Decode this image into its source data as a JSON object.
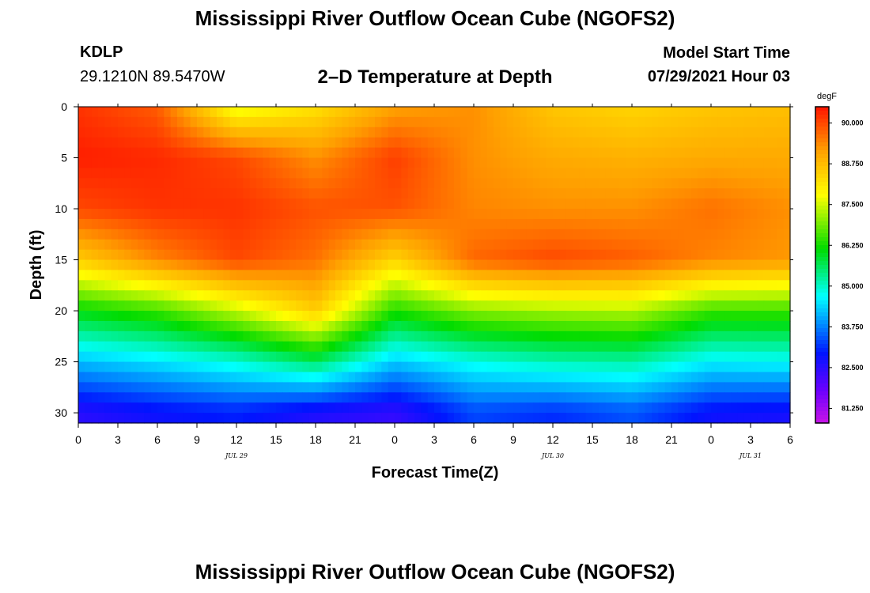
{
  "header": {
    "title": "Mississippi River Outflow Ocean Cube (NGOFS2)",
    "station_id": "KDLP",
    "station_coords": "29.1210N  89.5470W",
    "subtitle": "2–D Temperature at Depth",
    "model_start_label": "Model Start Time",
    "model_start_value": "07/29/2021 Hour 03"
  },
  "footer": {
    "title": "Mississippi River Outflow Ocean Cube (NGOFS2)"
  },
  "chart_data": {
    "type": "heatmap",
    "title": "2–D Temperature at Depth",
    "xlabel": "Forecast Time(Z)",
    "ylabel": "Depth (ft)",
    "xlim": [
      0,
      54
    ],
    "ylim": [
      31,
      0
    ],
    "x_ticks": [
      {
        "value": 0,
        "label": "0"
      },
      {
        "value": 3,
        "label": "3"
      },
      {
        "value": 6,
        "label": "6"
      },
      {
        "value": 9,
        "label": "9"
      },
      {
        "value": 12,
        "label": "12"
      },
      {
        "value": 15,
        "label": "15"
      },
      {
        "value": 18,
        "label": "18"
      },
      {
        "value": 21,
        "label": "21"
      },
      {
        "value": 24,
        "label": "0"
      },
      {
        "value": 27,
        "label": "3"
      },
      {
        "value": 30,
        "label": "6"
      },
      {
        "value": 33,
        "label": "9"
      },
      {
        "value": 36,
        "label": "12"
      },
      {
        "value": 39,
        "label": "15"
      },
      {
        "value": 42,
        "label": "18"
      },
      {
        "value": 45,
        "label": "21"
      },
      {
        "value": 48,
        "label": "0"
      },
      {
        "value": 51,
        "label": "3"
      },
      {
        "value": 54,
        "label": "6"
      }
    ],
    "date_labels": [
      {
        "value": 12,
        "label": "JUL 29"
      },
      {
        "value": 36,
        "label": "JUL 30"
      },
      {
        "value": 51,
        "label": "JUL 31"
      }
    ],
    "y_ticks": [
      0,
      5,
      10,
      15,
      20,
      25,
      30
    ],
    "colorbar": {
      "units": "degF",
      "min": 80.8,
      "max": 90.5,
      "ticks": [
        {
          "value": 90.0,
          "label": "90.000"
        },
        {
          "value": 88.75,
          "label": "88.750"
        },
        {
          "value": 87.5,
          "label": "87.500"
        },
        {
          "value": 86.25,
          "label": "86.250"
        },
        {
          "value": 85.0,
          "label": "85.000"
        },
        {
          "value": 83.75,
          "label": "83.750"
        },
        {
          "value": 82.5,
          "label": "82.500"
        },
        {
          "value": 81.25,
          "label": "81.250"
        }
      ]
    },
    "depths_ft": [
      0,
      5,
      10,
      15,
      20,
      25,
      30
    ],
    "times_h": [
      0,
      6,
      12,
      18,
      24,
      30,
      36,
      42,
      48,
      54
    ],
    "temperature_degF": [
      [
        90.2,
        89.8,
        87.6,
        88.2,
        89.1,
        89.3,
        88.6,
        88.4,
        88.6,
        88.7
      ],
      [
        90.4,
        90.3,
        90.0,
        89.3,
        90.1,
        89.3,
        89.0,
        88.9,
        89.0,
        89.0
      ],
      [
        90.0,
        90.2,
        90.2,
        89.9,
        89.9,
        89.4,
        89.3,
        89.3,
        89.6,
        89.3
      ],
      [
        88.5,
        89.4,
        90.0,
        89.6,
        88.4,
        89.7,
        90.0,
        89.8,
        89.4,
        89.2
      ],
      [
        86.1,
        86.5,
        87.4,
        88.5,
        86.3,
        87.0,
        87.2,
        87.3,
        86.5,
        86.5
      ],
      [
        84.2,
        84.5,
        84.9,
        85.6,
        84.3,
        84.8,
        85.1,
        85.2,
        84.6,
        84.7
      ],
      [
        82.5,
        82.8,
        83.0,
        82.6,
        82.4,
        83.3,
        83.1,
        83.4,
        82.8,
        82.7
      ]
    ]
  }
}
